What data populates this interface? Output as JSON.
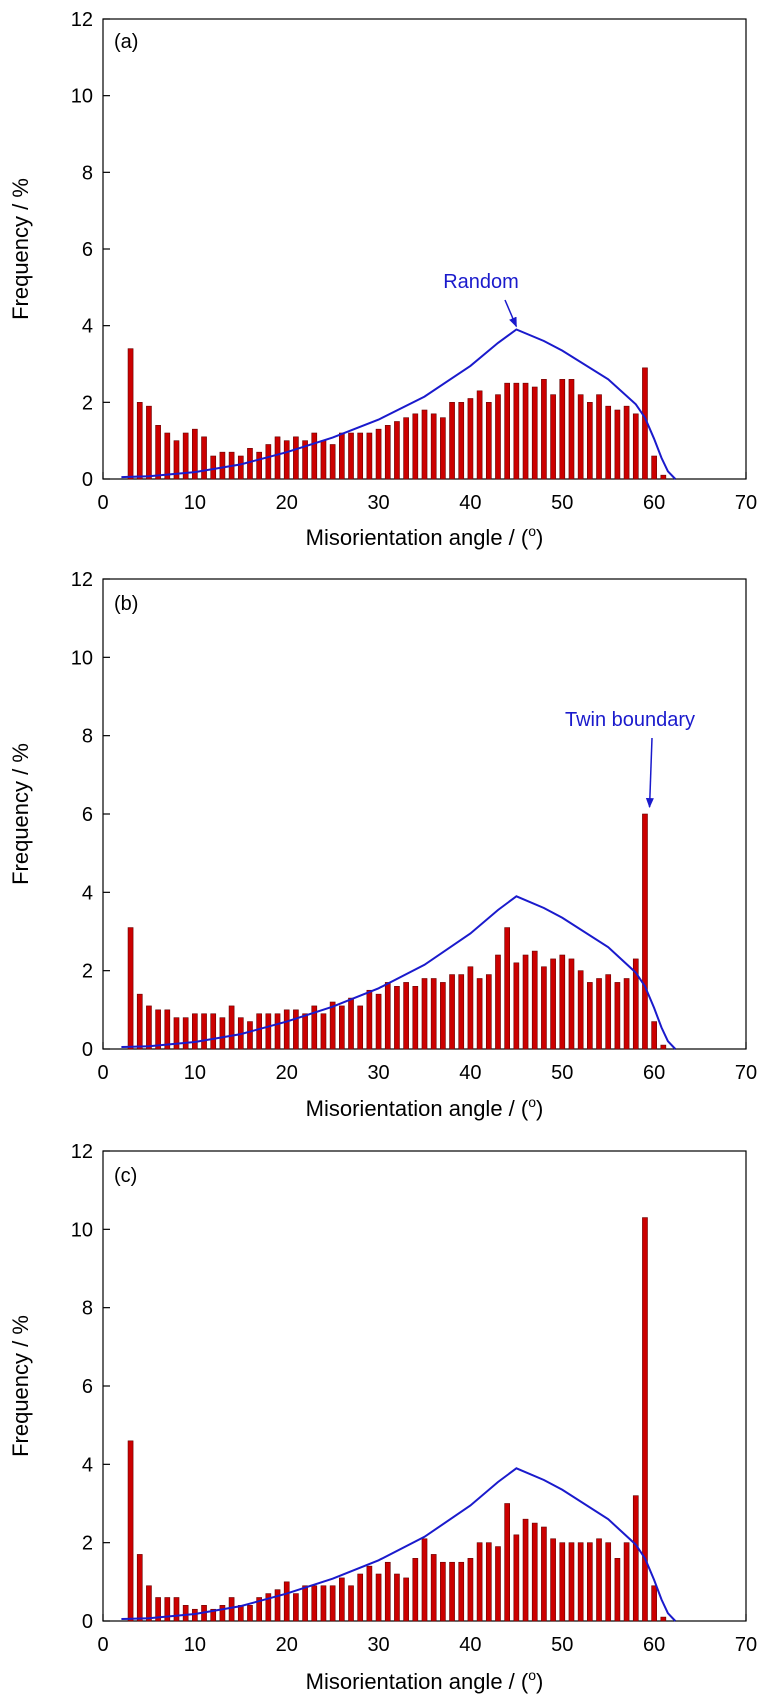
{
  "colors": {
    "bar_fill": "#cc0000",
    "bar_stroke": "#660000",
    "curve": "#1a1acc",
    "axis": "#000000"
  },
  "chart_data": [
    {
      "type": "bar",
      "panel_label": "(a)",
      "xlabel": "Misorientation angle / (",
      "xlabel_sup": "o",
      "xlabel_end": ")",
      "ylabel": "Frequency / %",
      "xlim": [
        0,
        70
      ],
      "ylim": [
        0,
        12
      ],
      "xticks": [
        0,
        10,
        20,
        30,
        40,
        50,
        60,
        70
      ],
      "yticks": [
        0,
        2,
        4,
        6,
        8,
        10,
        12
      ],
      "x": [
        3,
        4,
        5,
        6,
        7,
        8,
        9,
        10,
        11,
        12,
        13,
        14,
        15,
        16,
        17,
        18,
        19,
        20,
        21,
        22,
        23,
        24,
        25,
        26,
        27,
        28,
        29,
        30,
        31,
        32,
        33,
        34,
        35,
        36,
        37,
        38,
        39,
        40,
        41,
        42,
        43,
        44,
        45,
        46,
        47,
        48,
        49,
        50,
        51,
        52,
        53,
        54,
        55,
        56,
        57,
        58,
        59,
        60,
        61
      ],
      "values": [
        3.4,
        2.0,
        1.9,
        1.4,
        1.2,
        1.0,
        1.2,
        1.3,
        1.1,
        0.6,
        0.7,
        0.7,
        0.6,
        0.8,
        0.7,
        0.9,
        1.1,
        1.0,
        1.1,
        1.0,
        1.2,
        1.0,
        0.9,
        1.2,
        1.2,
        1.2,
        1.2,
        1.3,
        1.4,
        1.5,
        1.6,
        1.7,
        1.8,
        1.7,
        1.6,
        2.0,
        2.0,
        2.1,
        2.3,
        2.0,
        2.2,
        2.5,
        2.5,
        2.5,
        2.4,
        2.6,
        2.2,
        2.6,
        2.6,
        2.2,
        2.0,
        2.2,
        1.9,
        1.8,
        1.9,
        1.7,
        2.9,
        0.6,
        0.1
      ],
      "series": [
        {
          "name": "Random",
          "type": "line",
          "x": [
            2,
            5,
            10,
            15,
            20,
            25,
            30,
            35,
            40,
            43,
            45,
            48,
            50,
            55,
            58,
            59,
            60,
            60.8,
            61.5,
            62.3
          ],
          "y": [
            0.05,
            0.07,
            0.18,
            0.38,
            0.7,
            1.08,
            1.55,
            2.15,
            2.95,
            3.55,
            3.9,
            3.6,
            3.35,
            2.6,
            1.95,
            1.6,
            1.05,
            0.55,
            0.2,
            0
          ]
        }
      ],
      "annotation": {
        "text": "Random",
        "target": [
          45,
          3.9
        ]
      }
    },
    {
      "type": "bar",
      "panel_label": "(b)",
      "xlabel": "Misorientation angle / (",
      "xlabel_sup": "o",
      "xlabel_end": ")",
      "ylabel": "Frequency / %",
      "xlim": [
        0,
        70
      ],
      "ylim": [
        0,
        12
      ],
      "xticks": [
        0,
        10,
        20,
        30,
        40,
        50,
        60,
        70
      ],
      "yticks": [
        0,
        2,
        4,
        6,
        8,
        10,
        12
      ],
      "x": [
        3,
        4,
        5,
        6,
        7,
        8,
        9,
        10,
        11,
        12,
        13,
        14,
        15,
        16,
        17,
        18,
        19,
        20,
        21,
        22,
        23,
        24,
        25,
        26,
        27,
        28,
        29,
        30,
        31,
        32,
        33,
        34,
        35,
        36,
        37,
        38,
        39,
        40,
        41,
        42,
        43,
        44,
        45,
        46,
        47,
        48,
        49,
        50,
        51,
        52,
        53,
        54,
        55,
        56,
        57,
        58,
        59,
        60,
        61
      ],
      "values": [
        3.1,
        1.4,
        1.1,
        1.0,
        1.0,
        0.8,
        0.8,
        0.9,
        0.9,
        0.9,
        0.8,
        1.1,
        0.8,
        0.7,
        0.9,
        0.9,
        0.9,
        1.0,
        1.0,
        0.9,
        1.1,
        0.9,
        1.2,
        1.1,
        1.3,
        1.1,
        1.5,
        1.4,
        1.7,
        1.6,
        1.7,
        1.6,
        1.8,
        1.8,
        1.7,
        1.9,
        1.9,
        2.1,
        1.8,
        1.9,
        2.4,
        3.1,
        2.2,
        2.4,
        2.5,
        2.1,
        2.3,
        2.4,
        2.3,
        2.0,
        1.7,
        1.8,
        1.9,
        1.7,
        1.8,
        2.3,
        6.0,
        0.7,
        0.1
      ],
      "series": [
        {
          "name": "",
          "type": "line",
          "x": [
            2,
            5,
            10,
            15,
            20,
            25,
            30,
            35,
            40,
            43,
            45,
            48,
            50,
            55,
            58,
            59,
            60,
            60.8,
            61.5,
            62.3
          ],
          "y": [
            0.05,
            0.07,
            0.18,
            0.38,
            0.7,
            1.08,
            1.55,
            2.15,
            2.95,
            3.55,
            3.9,
            3.6,
            3.35,
            2.6,
            1.95,
            1.6,
            1.05,
            0.55,
            0.2,
            0
          ]
        }
      ],
      "annotation": {
        "text": "Twin boundary",
        "target": [
          59.5,
          6.1
        ]
      }
    },
    {
      "type": "bar",
      "panel_label": "(c)",
      "xlabel": "Misorientation angle / (",
      "xlabel_sup": "o",
      "xlabel_end": ")",
      "ylabel": "Frequency / %",
      "xlim": [
        0,
        70
      ],
      "ylim": [
        0,
        12
      ],
      "xticks": [
        0,
        10,
        20,
        30,
        40,
        50,
        60,
        70
      ],
      "yticks": [
        0,
        2,
        4,
        6,
        8,
        10,
        12
      ],
      "x": [
        3,
        4,
        5,
        6,
        7,
        8,
        9,
        10,
        11,
        12,
        13,
        14,
        15,
        16,
        17,
        18,
        19,
        20,
        21,
        22,
        23,
        24,
        25,
        26,
        27,
        28,
        29,
        30,
        31,
        32,
        33,
        34,
        35,
        36,
        37,
        38,
        39,
        40,
        41,
        42,
        43,
        44,
        45,
        46,
        47,
        48,
        49,
        50,
        51,
        52,
        53,
        54,
        55,
        56,
        57,
        58,
        59,
        60,
        61
      ],
      "values": [
        4.6,
        1.7,
        0.9,
        0.6,
        0.6,
        0.6,
        0.4,
        0.3,
        0.4,
        0.3,
        0.4,
        0.6,
        0.4,
        0.4,
        0.6,
        0.7,
        0.8,
        1.0,
        0.7,
        0.9,
        0.9,
        0.9,
        0.9,
        1.1,
        0.9,
        1.2,
        1.4,
        1.2,
        1.5,
        1.2,
        1.1,
        1.6,
        2.1,
        1.7,
        1.5,
        1.5,
        1.5,
        1.6,
        2.0,
        2.0,
        1.9,
        3.0,
        2.2,
        2.6,
        2.5,
        2.4,
        2.1,
        2.0,
        2.0,
        2.0,
        2.0,
        2.1,
        2.0,
        1.6,
        2.0,
        3.2,
        10.3,
        0.9,
        0.1
      ],
      "series": [
        {
          "name": "",
          "type": "line",
          "x": [
            2,
            5,
            10,
            15,
            20,
            25,
            30,
            35,
            40,
            43,
            45,
            48,
            50,
            55,
            58,
            59,
            60,
            60.8,
            61.5,
            62.3
          ],
          "y": [
            0.05,
            0.07,
            0.18,
            0.38,
            0.7,
            1.08,
            1.55,
            2.15,
            2.95,
            3.55,
            3.9,
            3.6,
            3.35,
            2.6,
            1.95,
            1.6,
            1.05,
            0.55,
            0.2,
            0
          ]
        }
      ]
    }
  ]
}
